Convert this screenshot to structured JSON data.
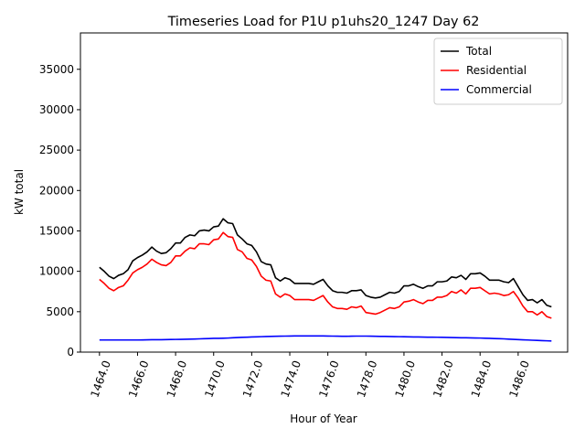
{
  "chart_data": {
    "type": "line",
    "title": "Timeseries Load for P1U p1uhs20_1247  Day 62",
    "xlabel": "Hour of Year",
    "ylabel": "kW total",
    "xlim": [
      1463.0,
      1488.6
    ],
    "ylim": [
      0,
      39500
    ],
    "xticks": [
      1464,
      1466,
      1468,
      1470,
      1472,
      1474,
      1476,
      1478,
      1480,
      1482,
      1484,
      1486
    ],
    "xtick_labels": [
      "1464.0",
      "1466.0",
      "1468.0",
      "1470.0",
      "1472.0",
      "1474.0",
      "1476.0",
      "1478.0",
      "1480.0",
      "1482.0",
      "1484.0",
      "1486.0"
    ],
    "yticks": [
      0,
      5000,
      10000,
      15000,
      20000,
      25000,
      30000,
      35000
    ],
    "ytick_labels": [
      "0",
      "5000",
      "10000",
      "15000",
      "20000",
      "25000",
      "30000",
      "35000"
    ],
    "legend_position": "top-right",
    "x": [
      1464.0,
      1464.25,
      1464.5,
      1464.75,
      1465.0,
      1465.25,
      1465.5,
      1465.75,
      1466.0,
      1466.25,
      1466.5,
      1466.75,
      1467.0,
      1467.25,
      1467.5,
      1467.75,
      1468.0,
      1468.25,
      1468.5,
      1468.75,
      1469.0,
      1469.25,
      1469.5,
      1469.75,
      1470.0,
      1470.25,
      1470.5,
      1470.75,
      1471.0,
      1471.25,
      1471.5,
      1471.75,
      1472.0,
      1472.25,
      1472.5,
      1472.75,
      1473.0,
      1473.25,
      1473.5,
      1473.75,
      1474.0,
      1474.25,
      1474.5,
      1474.75,
      1475.0,
      1475.25,
      1475.5,
      1475.75,
      1476.0,
      1476.25,
      1476.5,
      1476.75,
      1477.0,
      1477.25,
      1477.5,
      1477.75,
      1478.0,
      1478.25,
      1478.5,
      1478.75,
      1479.0,
      1479.25,
      1479.5,
      1479.75,
      1480.0,
      1480.25,
      1480.5,
      1480.75,
      1481.0,
      1481.25,
      1481.5,
      1481.75,
      1482.0,
      1482.25,
      1482.5,
      1482.75,
      1483.0,
      1483.25,
      1483.5,
      1483.75,
      1484.0,
      1484.25,
      1484.5,
      1484.75,
      1485.0,
      1485.25,
      1485.5,
      1485.75,
      1486.0,
      1486.25,
      1486.5,
      1486.75,
      1487.0,
      1487.25,
      1487.5,
      1487.75
    ],
    "series": [
      {
        "name": "Total",
        "color": "#000000",
        "values": [
          10500,
          10000,
          9400,
          9100,
          9500,
          9700,
          10200,
          11300,
          11700,
          12000,
          12400,
          13000,
          12500,
          12200,
          12300,
          12800,
          13500,
          13500,
          14200,
          14500,
          14400,
          15000,
          15100,
          15000,
          15500,
          15600,
          16500,
          16000,
          15900,
          14500,
          14000,
          13400,
          13200,
          12400,
          11200,
          10900,
          10800,
          9200,
          8800,
          9200,
          9000,
          8500,
          8500,
          8500,
          8500,
          8400,
          8700,
          9000,
          8200,
          7600,
          7400,
          7400,
          7300,
          7600,
          7600,
          7700,
          7000,
          6800,
          6700,
          6800,
          7100,
          7400,
          7300,
          7500,
          8200,
          8200,
          8400,
          8100,
          7900,
          8200,
          8200,
          8700,
          8700,
          8800,
          9300,
          9200,
          9500,
          9000,
          9700,
          9700,
          9800,
          9400,
          8900,
          8900,
          8900,
          8700,
          8600,
          9100,
          8100,
          7100,
          6400,
          6500,
          6100,
          6500,
          5800,
          5600
        ]
      },
      {
        "name": "Residential",
        "color": "#ff0000",
        "values": [
          9000,
          8500,
          7900,
          7600,
          8000,
          8200,
          8900,
          9800,
          10200,
          10500,
          10900,
          11500,
          11100,
          10800,
          10700,
          11100,
          11900,
          11900,
          12500,
          12900,
          12800,
          13400,
          13400,
          13300,
          13900,
          14000,
          14800,
          14300,
          14200,
          12700,
          12400,
          11600,
          11400,
          10600,
          9400,
          8900,
          8800,
          7200,
          6800,
          7200,
          7000,
          6500,
          6500,
          6500,
          6500,
          6400,
          6700,
          7000,
          6200,
          5600,
          5400,
          5400,
          5300,
          5600,
          5500,
          5700,
          4900,
          4800,
          4700,
          4900,
          5200,
          5500,
          5400,
          5600,
          6200,
          6300,
          6500,
          6200,
          6000,
          6400,
          6400,
          6800,
          6800,
          7000,
          7500,
          7300,
          7700,
          7200,
          7900,
          7900,
          8000,
          7600,
          7200,
          7300,
          7200,
          7000,
          7100,
          7500,
          6700,
          5700,
          5000,
          5000,
          4600,
          5000,
          4400,
          4200
        ]
      },
      {
        "name": "Commercial",
        "color": "#0000ff",
        "values": [
          1500,
          1500,
          1500,
          1500,
          1500,
          1500,
          1500,
          1500,
          1500,
          1510,
          1520,
          1530,
          1530,
          1540,
          1550,
          1560,
          1570,
          1580,
          1590,
          1600,
          1620,
          1640,
          1660,
          1680,
          1700,
          1710,
          1720,
          1740,
          1770,
          1800,
          1830,
          1850,
          1870,
          1890,
          1910,
          1930,
          1950,
          1960,
          1970,
          1980,
          1990,
          2000,
          2000,
          2000,
          2000,
          2000,
          2000,
          2000,
          1990,
          1980,
          1970,
          1960,
          1960,
          1970,
          1980,
          1980,
          1980,
          1970,
          1960,
          1950,
          1940,
          1930,
          1920,
          1910,
          1900,
          1890,
          1880,
          1870,
          1860,
          1850,
          1850,
          1840,
          1830,
          1820,
          1800,
          1790,
          1780,
          1770,
          1760,
          1750,
          1740,
          1720,
          1700,
          1680,
          1660,
          1640,
          1610,
          1580,
          1550,
          1520,
          1500,
          1470,
          1450,
          1420,
          1400,
          1380
        ]
      }
    ]
  }
}
